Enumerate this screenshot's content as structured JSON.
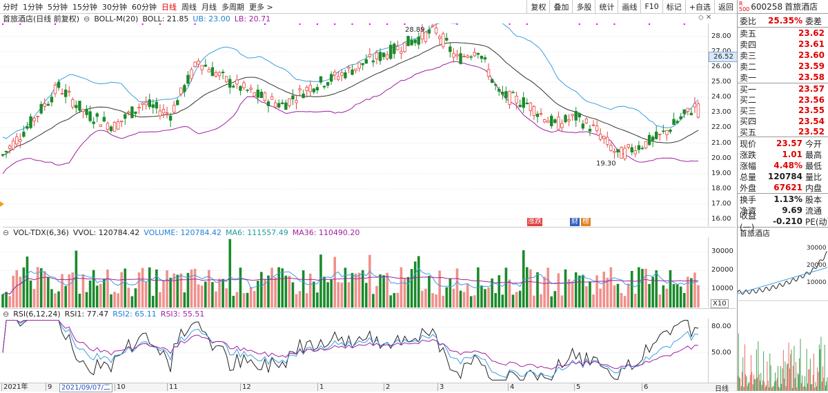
{
  "toolbar": {
    "periods": [
      "分时",
      "1分钟",
      "5分钟",
      "15分钟",
      "30分钟",
      "60分钟",
      "日线",
      "周线",
      "月线",
      "多周期",
      "更多 >"
    ],
    "active_period": "日线",
    "tools": [
      "复权",
      "叠加",
      "多股",
      "统计",
      "画线",
      "F10",
      "标记",
      "+自选",
      "返回"
    ]
  },
  "boll": {
    "title": "首旅酒店(日线 前复权)",
    "indicator": "BOLL-M(20)",
    "boll_label": "BOLL: 21.85",
    "ub_label": "UB: 23.00",
    "lb_label": "LB: 20.71",
    "high_tag": "28.89",
    "low_tag": "19.30",
    "current_price_tag": "26.52",
    "axis": [
      "28.00",
      "27.00",
      "26.00",
      "25.00",
      "24.00",
      "23.00",
      "22.00",
      "21.00",
      "20.00",
      "19.00",
      "18.00",
      "17.00",
      "16.00"
    ],
    "markers": [
      "涨跌",
      "财",
      "榜"
    ]
  },
  "volume": {
    "title": "VOL-TDX(6,36)",
    "vvol": "VVOL: 120784.42",
    "volume_label": "VOLUME: 120784.42",
    "ma6_label": "MA6: 111557.49",
    "ma36_label": "MA36: 110490.20",
    "axis": [
      "30000",
      "20000",
      "10000"
    ],
    "unit": "X10"
  },
  "rsi": {
    "title": "RSI(6,12,24)",
    "rsi1": "RSI1: 77.47",
    "rsi2": "RSI2: 65.11",
    "rsi3": "RSI3: 55.51",
    "axis": [
      "80.00",
      "50.00"
    ]
  },
  "dates": [
    "2021年",
    "9",
    "2021/09/07/二",
    "10",
    "11",
    "12",
    "1",
    "2",
    "3",
    "4",
    "5",
    "6"
  ],
  "date_scale": "日线",
  "quote": {
    "code": "600258",
    "name": "首旅酒店",
    "wb_label": "委比",
    "wb_value": "25.35%",
    "wc_label": "委差",
    "asks": [
      {
        "label": "卖五",
        "price": "23.62"
      },
      {
        "label": "卖四",
        "price": "23.61"
      },
      {
        "label": "卖三",
        "price": "23.60"
      },
      {
        "label": "卖二",
        "price": "23.59"
      },
      {
        "label": "卖一",
        "price": "23.58"
      }
    ],
    "bids": [
      {
        "label": "买一",
        "price": "23.57"
      },
      {
        "label": "买二",
        "price": "23.56"
      },
      {
        "label": "买三",
        "price": "23.55"
      },
      {
        "label": "买四",
        "price": "23.54"
      },
      {
        "label": "买五",
        "price": "23.52"
      }
    ],
    "stats": [
      {
        "label": "现价",
        "value": "23.57",
        "label2": "今开",
        "red": true
      },
      {
        "label": "涨跌",
        "value": "1.01",
        "label2": "最高",
        "red": true
      },
      {
        "label": "涨幅",
        "value": "4.48%",
        "label2": "最低",
        "red": true
      },
      {
        "label": "总量",
        "value": "120784",
        "label2": "量比",
        "red": false
      },
      {
        "label": "外盘",
        "value": "67621",
        "label2": "内盘",
        "red": true
      }
    ],
    "stats2": [
      {
        "label": "换手",
        "value": "1.13%",
        "label2": "股本"
      },
      {
        "label": "净资",
        "value": "9.69",
        "label2": "流通"
      },
      {
        "label": "收益(一)",
        "value": "-0.210",
        "label2": "PE(动)"
      }
    ],
    "mini_title": "首旅酒店",
    "mini_axis": [
      "30000",
      "20000",
      "10000"
    ]
  }
}
